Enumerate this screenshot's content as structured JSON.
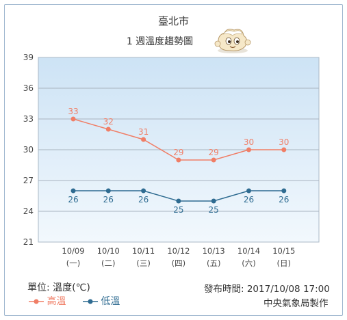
{
  "header": {
    "city": "臺北市",
    "subtitle": "1 週溫度趨勢圖"
  },
  "footer": {
    "unit": "單位: 溫度(℃)",
    "published": "發布時間: 2017/10/08 17:00",
    "agency": "中央氣象局製作"
  },
  "colors": {
    "high": "#f07e66",
    "low": "#2e6b91",
    "plot_top": "#cde3f5",
    "plot_bottom": "#f2f8fd"
  },
  "chart_data": {
    "type": "line",
    "categories": [
      "10/09",
      "10/10",
      "10/11",
      "10/12",
      "10/13",
      "10/14",
      "10/15"
    ],
    "weekdays": [
      "(一)",
      "(二)",
      "(三)",
      "(四)",
      "(五)",
      "(六)",
      "(日)"
    ],
    "series": [
      {
        "name": "高溫",
        "values": [
          33,
          32,
          31,
          29,
          29,
          30,
          30
        ],
        "color": "#f07e66"
      },
      {
        "name": "低溫",
        "values": [
          26,
          26,
          26,
          25,
          25,
          26,
          26
        ],
        "color": "#2e6b91"
      }
    ],
    "ylim": [
      21,
      39
    ],
    "yticks": [
      21,
      24,
      27,
      30,
      33,
      36,
      39
    ],
    "grid": true,
    "legend": "bottom-left"
  }
}
